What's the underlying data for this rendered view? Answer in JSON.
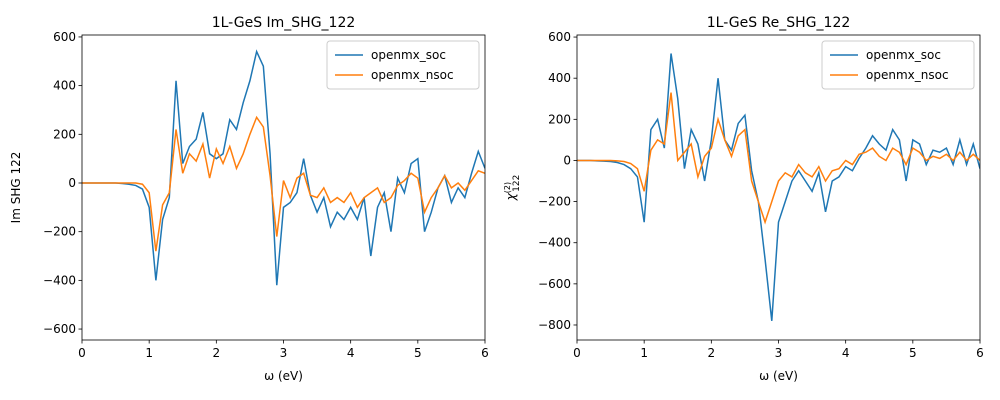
{
  "chart_data": [
    {
      "type": "line",
      "title": "1L-GeS Im_SHG_122",
      "xlabel": "ω (eV)",
      "ylabel": "Im SHG 122",
      "x": [
        0,
        0.1,
        0.2,
        0.3,
        0.4,
        0.5,
        0.6,
        0.7,
        0.8,
        0.9,
        1.0,
        1.1,
        1.2,
        1.3,
        1.4,
        1.5,
        1.6,
        1.7,
        1.8,
        1.9,
        2.0,
        2.1,
        2.2,
        2.3,
        2.4,
        2.5,
        2.6,
        2.7,
        2.8,
        2.9,
        3.0,
        3.1,
        3.2,
        3.3,
        3.4,
        3.5,
        3.6,
        3.7,
        3.8,
        3.9,
        4.0,
        4.1,
        4.2,
        4.3,
        4.4,
        4.5,
        4.6,
        4.7,
        4.8,
        4.9,
        5.0,
        5.1,
        5.2,
        5.3,
        5.4,
        5.5,
        5.6,
        5.7,
        5.8,
        5.9,
        6.0
      ],
      "series": [
        {
          "name": "openmx_soc",
          "color": "#1f77b4",
          "values": [
            0,
            0,
            0,
            0,
            0,
            0,
            -2,
            -5,
            -10,
            -25,
            -100,
            -400,
            -150,
            -60,
            420,
            80,
            150,
            180,
            290,
            120,
            100,
            120,
            260,
            220,
            330,
            420,
            540,
            480,
            120,
            -420,
            -100,
            -80,
            -40,
            100,
            -50,
            -120,
            -60,
            -180,
            -120,
            -150,
            -100,
            -150,
            -60,
            -300,
            -100,
            -40,
            -200,
            20,
            -40,
            80,
            100,
            -200,
            -120,
            -20,
            30,
            -80,
            -20,
            -60,
            40,
            130,
            60
          ]
        },
        {
          "name": "openmx_nsoc",
          "color": "#ff7f0e",
          "values": [
            0,
            0,
            0,
            0,
            0,
            0,
            0,
            0,
            0,
            -5,
            -40,
            -280,
            -90,
            -40,
            220,
            40,
            120,
            90,
            160,
            20,
            140,
            80,
            150,
            60,
            120,
            200,
            270,
            230,
            30,
            -220,
            10,
            -60,
            20,
            40,
            -50,
            -60,
            -20,
            -80,
            -60,
            -80,
            -40,
            -100,
            -60,
            -40,
            -20,
            -80,
            -60,
            -10,
            10,
            40,
            20,
            -120,
            -60,
            -20,
            30,
            -20,
            0,
            -30,
            10,
            50,
            40
          ]
        }
      ],
      "xlim": [
        0,
        6
      ],
      "xticks": [
        0,
        1,
        2,
        3,
        4,
        5,
        6
      ],
      "ylim": [
        -645,
        608
      ],
      "yticks": [
        {
          "value": -600,
          "label": "−600"
        },
        {
          "value": -400,
          "label": "−400"
        },
        {
          "value": -200,
          "label": "−200"
        },
        0,
        200,
        400,
        600
      ],
      "legend": "upper right"
    },
    {
      "type": "line",
      "title": "1L-GeS Re_SHG_122",
      "xlabel": "ω (eV)",
      "ylabel": {
        "base": "χ",
        "sup": "(2)",
        "sub": "122"
      },
      "x": [
        0,
        0.1,
        0.2,
        0.3,
        0.4,
        0.5,
        0.6,
        0.7,
        0.8,
        0.9,
        1.0,
        1.1,
        1.2,
        1.3,
        1.4,
        1.5,
        1.6,
        1.7,
        1.8,
        1.9,
        2.0,
        2.1,
        2.2,
        2.3,
        2.4,
        2.5,
        2.6,
        2.7,
        2.8,
        2.9,
        3.0,
        3.1,
        3.2,
        3.3,
        3.4,
        3.5,
        3.6,
        3.7,
        3.8,
        3.9,
        4.0,
        4.1,
        4.2,
        4.3,
        4.4,
        4.5,
        4.6,
        4.7,
        4.8,
        4.9,
        5.0,
        5.1,
        5.2,
        5.3,
        5.4,
        5.5,
        5.6,
        5.7,
        5.8,
        5.9,
        6.0
      ],
      "series": [
        {
          "name": "openmx_soc",
          "color": "#1f77b4",
          "values": [
            0,
            0,
            0,
            -2,
            -3,
            -5,
            -10,
            -20,
            -40,
            -80,
            -300,
            150,
            200,
            60,
            520,
            300,
            -40,
            150,
            80,
            -100,
            100,
            400,
            100,
            50,
            180,
            220,
            -50,
            -200,
            -480,
            -780,
            -300,
            -200,
            -100,
            -50,
            -100,
            -150,
            -60,
            -250,
            -100,
            -80,
            -30,
            -50,
            10,
            60,
            120,
            80,
            50,
            150,
            100,
            -100,
            100,
            80,
            -20,
            50,
            40,
            60,
            -20,
            100,
            -20,
            80,
            -40
          ]
        },
        {
          "name": "openmx_nsoc",
          "color": "#ff7f0e",
          "values": [
            0,
            0,
            0,
            0,
            0,
            0,
            -2,
            -5,
            -15,
            -40,
            -150,
            50,
            100,
            80,
            330,
            0,
            40,
            80,
            -80,
            20,
            60,
            200,
            100,
            20,
            120,
            150,
            -100,
            -200,
            -300,
            -200,
            -100,
            -60,
            -80,
            -20,
            -60,
            -80,
            -30,
            -100,
            -50,
            -40,
            0,
            -20,
            30,
            40,
            60,
            20,
            0,
            60,
            40,
            -20,
            60,
            40,
            0,
            20,
            10,
            30,
            0,
            40,
            0,
            30,
            0
          ]
        }
      ],
      "xlim": [
        0,
        6
      ],
      "xticks": [
        0,
        1,
        2,
        3,
        4,
        5,
        6
      ],
      "ylim": [
        -873,
        610
      ],
      "yticks": [
        {
          "value": -800,
          "label": "−800"
        },
        {
          "value": -600,
          "label": "−600"
        },
        {
          "value": -400,
          "label": "−400"
        },
        {
          "value": -200,
          "label": "−200"
        },
        0,
        200,
        400,
        600
      ],
      "legend": "upper right"
    }
  ]
}
